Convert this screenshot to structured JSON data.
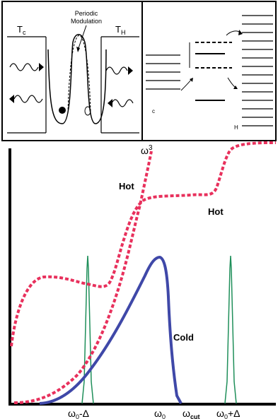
{
  "top_panel": {
    "left": {
      "tc_label_main": "T",
      "tc_label_sub": "c",
      "th_label_main": "T",
      "th_label_sub": "H",
      "modulation_line1": "Periodic",
      "modulation_line2": "Modulation"
    },
    "right": {
      "c_label": "c",
      "h_label": "H"
    }
  },
  "bottom_panel": {
    "omega3_main": "ω",
    "omega3_sup": "3",
    "hot_label_1": "Hot",
    "hot_label_2": "Hot",
    "cold_label": "Cold",
    "x_ticks": [
      {
        "main": "ω",
        "sub": "0",
        "suffix": "-Δ"
      },
      {
        "main": "ω",
        "sub": "0",
        "suffix": ""
      },
      {
        "main": "ω",
        "sub": "cut",
        "suffix": ""
      },
      {
        "main": "ω",
        "sub": "0",
        "suffix": "+Δ"
      }
    ]
  },
  "colors": {
    "hot_curve": "#e8305c",
    "cold_curve": "#3f48a8",
    "peak_lines": "#1f8f5a",
    "frame": "#000000"
  }
}
